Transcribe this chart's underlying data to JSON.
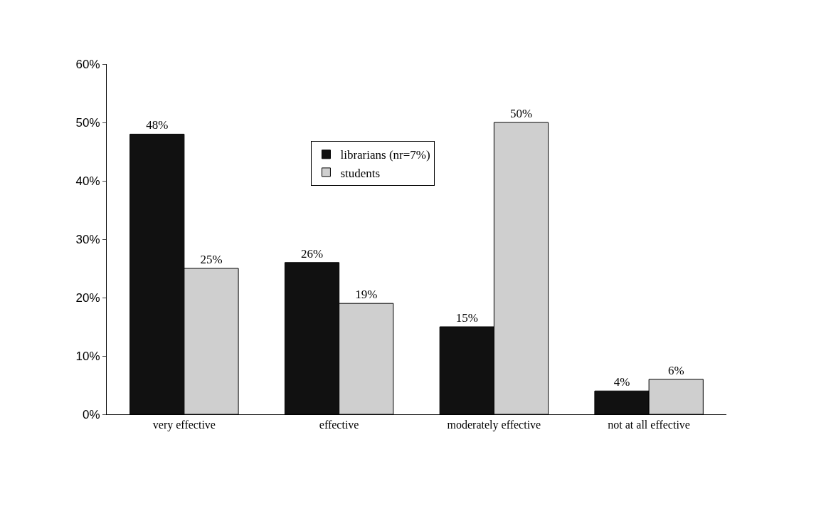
{
  "chart_data": {
    "type": "bar",
    "categories": [
      "very effective",
      "effective",
      "moderately effective",
      "not at all effective"
    ],
    "series": [
      {
        "name": "librarians (nr=7%)",
        "color": "#111111",
        "values": [
          48,
          26,
          15,
          4
        ],
        "value_labels": [
          "48%",
          "26%",
          "15%",
          "4%"
        ]
      },
      {
        "name": "students",
        "color": "#cfcfcf",
        "values": [
          25,
          19,
          50,
          6
        ],
        "value_labels": [
          "25%",
          "19%",
          "50%",
          "6%"
        ]
      }
    ],
    "ylim": [
      0,
      60
    ],
    "yticks": [
      {
        "value": 0,
        "label": "0%"
      },
      {
        "value": 10,
        "label": "10%"
      },
      {
        "value": 20,
        "label": "20%"
      },
      {
        "value": 30,
        "label": "30%"
      },
      {
        "value": 40,
        "label": "40%"
      },
      {
        "value": 50,
        "label": "50%"
      },
      {
        "value": 60,
        "label": "60%"
      }
    ],
    "legend": "top"
  }
}
